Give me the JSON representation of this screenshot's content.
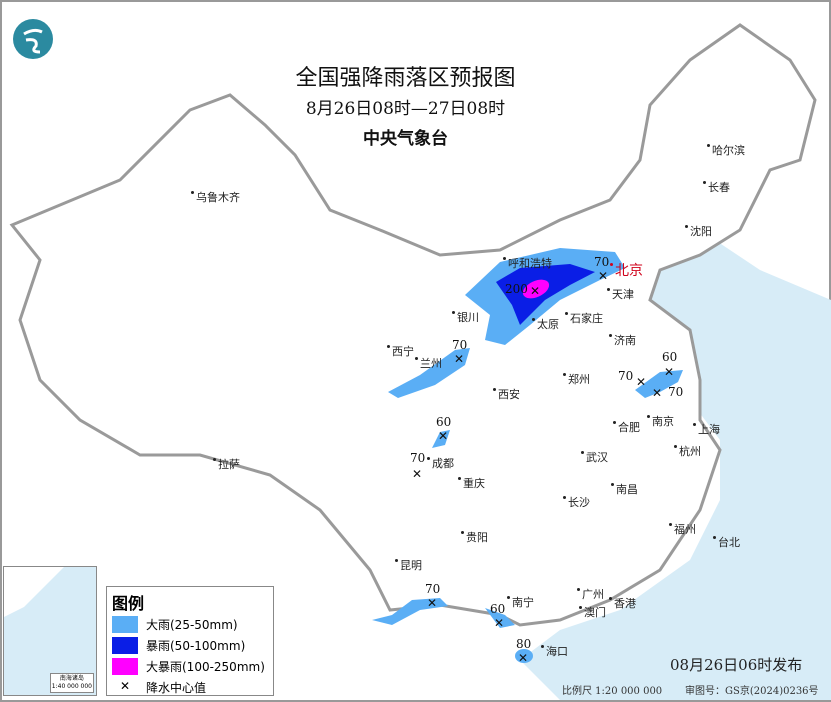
{
  "header": {
    "title": "全国强降雨落区预报图",
    "period": "8月26日08时—27日08时",
    "agency": "中央气象台"
  },
  "logo": {
    "icon": "cma-logo",
    "color": "#2b8aa0"
  },
  "colors": {
    "heavy_rain": "#5aaef5",
    "rainstorm": "#0a1ee6",
    "heavy_rainstorm": "#ff00ff",
    "sea": "#d7ecf7",
    "border": "#9a9a9a"
  },
  "legend": {
    "title": "图例",
    "items": [
      {
        "label": "大雨(25-50mm)",
        "color": "#5aaef5"
      },
      {
        "label": "暴雨(50-100mm)",
        "color": "#0a1ee6"
      },
      {
        "label": "大暴雨(100-250mm)",
        "color": "#ff00ff"
      },
      {
        "label": "降水中心值",
        "icon": "x-mark"
      }
    ]
  },
  "cities": [
    "乌鲁木齐",
    "哈尔滨",
    "长春",
    "沈阳",
    "呼和浩特",
    "北京",
    "天津",
    "银川",
    "太原",
    "石家庄",
    "济南",
    "西宁",
    "兰州",
    "西安",
    "郑州",
    "合肥",
    "南京",
    "上海",
    "杭州",
    "武汉",
    "成都",
    "重庆",
    "拉萨",
    "长沙",
    "南昌",
    "福州",
    "台北",
    "贵阳",
    "昆明",
    "南宁",
    "广州",
    "澳门",
    "香港",
    "海口"
  ],
  "precip_centers": [
    "200",
    "70",
    "70",
    "60",
    "70",
    "70",
    "60",
    "70",
    "70",
    "60",
    "80"
  ],
  "inset": {
    "caption_name": "南海诸岛",
    "caption_scale": "1:40 000 000"
  },
  "footer": {
    "issued": "08月26日06时发布",
    "scale": "比例尺 1:20 000 000",
    "approval": "审图号：GS京(2024)0236号"
  }
}
